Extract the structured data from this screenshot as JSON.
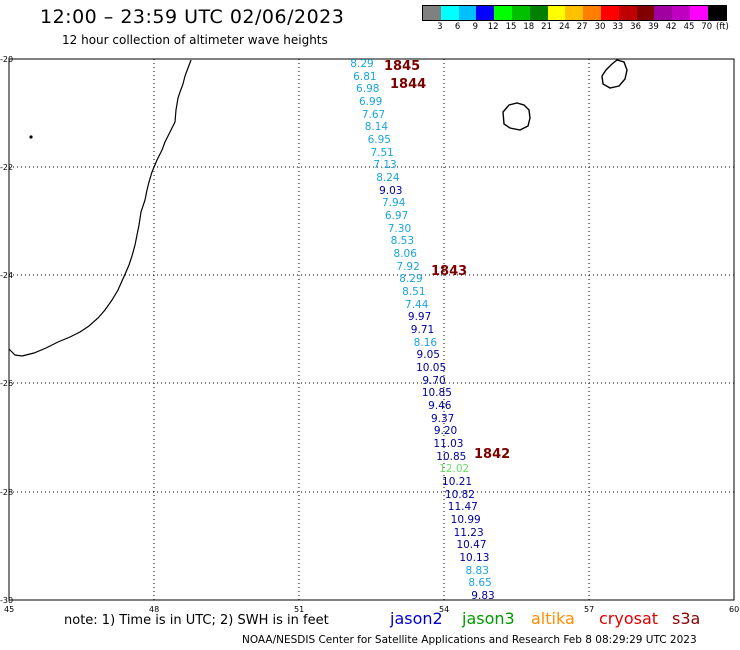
{
  "header": {
    "title": "12:00 – 23:59 UTC 02/06/2023",
    "subtitle": "12 hour collection of altimeter wave heights"
  },
  "legend": {
    "colors": [
      "#808080",
      "#00ffff",
      "#00c0ff",
      "#0000ff",
      "#00ff00",
      "#00c000",
      "#008000",
      "#ffff00",
      "#ffc000",
      "#ff8000",
      "#ff0000",
      "#c00000",
      "#800000",
      "#a000a0",
      "#c000c0",
      "#ff00ff",
      "#000000"
    ],
    "labels": [
      "3",
      "6",
      "9",
      "12",
      "15",
      "18",
      "21",
      "24",
      "27",
      "30",
      "33",
      "36",
      "39",
      "42",
      "45",
      "70"
    ],
    "unit": "(ft)"
  },
  "axes": {
    "x_ticks": [
      "45",
      "48",
      "51",
      "54",
      "57",
      "60"
    ],
    "y_ticks": [
      "-20",
      "-22",
      "-24",
      "-26",
      "-28",
      "-30"
    ]
  },
  "wave_labels": [
    {
      "v": "8.29",
      "c": "#1aa4d9"
    },
    {
      "v": "6.81",
      "c": "#1aa4d9"
    },
    {
      "v": "6.98",
      "c": "#1aa4d9"
    },
    {
      "v": "6.99",
      "c": "#1aa4d9"
    },
    {
      "v": "7.67",
      "c": "#1aa4d9"
    },
    {
      "v": "8.14",
      "c": "#1aa4d9"
    },
    {
      "v": "6.95",
      "c": "#1aa4d9"
    },
    {
      "v": "7.51",
      "c": "#1aa4d9"
    },
    {
      "v": "7.13",
      "c": "#1aa4d9"
    },
    {
      "v": "8.24",
      "c": "#1aa4d9"
    },
    {
      "v": "9.03",
      "c": "#00009c"
    },
    {
      "v": "7.94",
      "c": "#1aa4d9"
    },
    {
      "v": "6.97",
      "c": "#1aa4d9"
    },
    {
      "v": "7.30",
      "c": "#1aa4d9"
    },
    {
      "v": "8.53",
      "c": "#1aa4d9"
    },
    {
      "v": "8.06",
      "c": "#1aa4d9"
    },
    {
      "v": "7.92",
      "c": "#1aa4d9"
    },
    {
      "v": "8.29",
      "c": "#1aa4d9"
    },
    {
      "v": "8.51",
      "c": "#1aa4d9"
    },
    {
      "v": "7.44",
      "c": "#1aa4d9"
    },
    {
      "v": "9.97",
      "c": "#00009c"
    },
    {
      "v": "9.71",
      "c": "#00009c"
    },
    {
      "v": "8.16",
      "c": "#1aa4d9"
    },
    {
      "v": "9.05",
      "c": "#00009c"
    },
    {
      "v": "10.05",
      "c": "#00009c"
    },
    {
      "v": "9.70",
      "c": "#00009c"
    },
    {
      "v": "10.85",
      "c": "#00009c"
    },
    {
      "v": "9.46",
      "c": "#00009c"
    },
    {
      "v": "9.37",
      "c": "#00009c"
    },
    {
      "v": "9.20",
      "c": "#00009c"
    },
    {
      "v": "11.03",
      "c": "#00009c"
    },
    {
      "v": "10.85",
      "c": "#00009c"
    },
    {
      "v": "12.02",
      "c": "#66e066"
    },
    {
      "v": "10.21",
      "c": "#00009c"
    },
    {
      "v": "10.82",
      "c": "#00009c"
    },
    {
      "v": "11.47",
      "c": "#00009c"
    },
    {
      "v": "10.99",
      "c": "#00009c"
    },
    {
      "v": "11.23",
      "c": "#00009c"
    },
    {
      "v": "10.47",
      "c": "#00009c"
    },
    {
      "v": "10.13",
      "c": "#00009c"
    },
    {
      "v": "8.83",
      "c": "#1aa4d9"
    },
    {
      "v": "8.65",
      "c": "#1aa4d9"
    },
    {
      "v": "9.83",
      "c": "#00009c"
    }
  ],
  "time_labels": [
    "1845",
    "1844",
    "1843",
    "1842"
  ],
  "footer": {
    "note": "note:  1) Time is in UTC;  2) SWH is in feet",
    "satellites": [
      {
        "name": "jason2",
        "color": "#0000cc"
      },
      {
        "name": "jason3",
        "color": "#009900"
      },
      {
        "name": "altika",
        "color": "#ff8c00"
      },
      {
        "name": "cryosat",
        "color": "#dd0000"
      },
      {
        "name": "s3a",
        "color": "#8b0000"
      }
    ],
    "credit": "NOAA/NESDIS Center for Satellite Applications and Research     Feb  8 08:29:29 UTC 2023"
  }
}
